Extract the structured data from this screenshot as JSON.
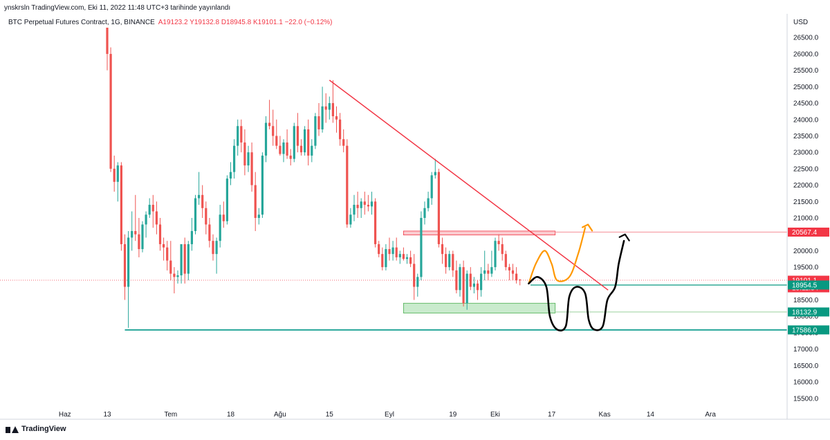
{
  "header": {
    "credit": "ynskrsln TradingView.com, Eki 11, 2022 11:48 UTC+3 tarihinde yayınlandı",
    "symbol": "BTC Perpetual Futures Contract, 1G, BINANCE",
    "ohlc_open": "A19123.2",
    "ohlc_high": "Y19132.8",
    "ohlc_low": "D18945.8",
    "ohlc_close": "K19101.1",
    "change": "−22.0 (−0.12%)",
    "currency": "USD"
  },
  "footer": {
    "brand": "TradingView",
    "brand_icon": "tradingview-logo-icon"
  },
  "chart_data": {
    "type": "candlestick",
    "title": "",
    "xlabel": "",
    "ylabel": "",
    "ylim": [
      15200,
      26800
    ],
    "colors": {
      "up": "#26a69a",
      "down": "#ef5350",
      "trendline": "#f23645",
      "support": "#089981",
      "resistance_zone": "#f7a1a8",
      "support_zone": "#b7e4bc",
      "annotation_orange": "#ff9800",
      "annotation_black": "#000000"
    },
    "y_ticks": [
      15500,
      16000,
      16500,
      17000,
      17500,
      18000,
      18500,
      19000,
      19500,
      20000,
      20500,
      21000,
      21500,
      22000,
      22500,
      23000,
      23500,
      24000,
      24500,
      25000,
      25500,
      26000,
      26500
    ],
    "x_ticks": [
      {
        "label": "Haz",
        "day": -12
      },
      {
        "label": "13",
        "day": 0
      },
      {
        "label": "Tem",
        "day": 18
      },
      {
        "label": "18",
        "day": 35
      },
      {
        "label": "Ağu",
        "day": 49
      },
      {
        "label": "15",
        "day": 63
      },
      {
        "label": "Eyl",
        "day": 80
      },
      {
        "label": "19",
        "day": 98
      },
      {
        "label": "Eki",
        "day": 110
      },
      {
        "label": "17",
        "day": 126
      },
      {
        "label": "Kas",
        "day": 141
      },
      {
        "label": "14",
        "day": 154
      },
      {
        "label": "Ara",
        "day": 171
      }
    ],
    "price_labels": [
      {
        "value": 20567.4,
        "text": "20567.4",
        "color": "#f23645"
      },
      {
        "value": 19101.1,
        "text": "19101.1",
        "sub": "15:11:34",
        "color": "#f23645"
      },
      {
        "value": 18954.5,
        "text": "18954.5",
        "color": "#089981"
      },
      {
        "value": 18132.9,
        "text": "18132.9",
        "color": "#089981"
      },
      {
        "value": 17586.0,
        "text": "17586.0",
        "color": "#089981"
      }
    ],
    "candles": [
      {
        "d": 0,
        "o": 27000,
        "h": 27200,
        "l": 25500,
        "c": 26000
      },
      {
        "d": 1,
        "o": 26000,
        "h": 26200,
        "l": 22400,
        "c": 22500
      },
      {
        "d": 2,
        "o": 22500,
        "h": 22900,
        "l": 21800,
        "c": 22100
      },
      {
        "d": 3,
        "o": 22100,
        "h": 22700,
        "l": 21500,
        "c": 22600
      },
      {
        "d": 4,
        "o": 22600,
        "h": 22700,
        "l": 20000,
        "c": 20200
      },
      {
        "d": 5,
        "o": 20200,
        "h": 20500,
        "l": 18500,
        "c": 18900
      },
      {
        "d": 6,
        "o": 18900,
        "h": 20600,
        "l": 17650,
        "c": 20400
      },
      {
        "d": 7,
        "o": 20400,
        "h": 21200,
        "l": 20000,
        "c": 20600
      },
      {
        "d": 8,
        "o": 20600,
        "h": 21700,
        "l": 20300,
        "c": 20500
      },
      {
        "d": 9,
        "o": 20500,
        "h": 21000,
        "l": 19800,
        "c": 20050
      },
      {
        "d": 10,
        "o": 20050,
        "h": 20900,
        "l": 19950,
        "c": 20800
      },
      {
        "d": 11,
        "o": 20800,
        "h": 21200,
        "l": 20400,
        "c": 21100
      },
      {
        "d": 12,
        "o": 21100,
        "h": 21600,
        "l": 21000,
        "c": 21400
      },
      {
        "d": 13,
        "o": 21400,
        "h": 21700,
        "l": 20700,
        "c": 21200
      },
      {
        "d": 14,
        "o": 21200,
        "h": 21500,
        "l": 20500,
        "c": 20800
      },
      {
        "d": 15,
        "o": 20800,
        "h": 21000,
        "l": 20000,
        "c": 20200
      },
      {
        "d": 16,
        "o": 20200,
        "h": 20400,
        "l": 19700,
        "c": 20100
      },
      {
        "d": 17,
        "o": 20100,
        "h": 20300,
        "l": 19400,
        "c": 19700
      },
      {
        "d": 18,
        "o": 19700,
        "h": 20300,
        "l": 19100,
        "c": 19300
      },
      {
        "d": 19,
        "o": 19300,
        "h": 19500,
        "l": 18700,
        "c": 19200
      },
      {
        "d": 20,
        "o": 19200,
        "h": 19400,
        "l": 19000,
        "c": 19250
      },
      {
        "d": 21,
        "o": 19250,
        "h": 20200,
        "l": 19000,
        "c": 20200
      },
      {
        "d": 22,
        "o": 20200,
        "h": 20400,
        "l": 19000,
        "c": 19300
      },
      {
        "d": 23,
        "o": 19300,
        "h": 20300,
        "l": 19100,
        "c": 20200
      },
      {
        "d": 24,
        "o": 20200,
        "h": 21000,
        "l": 20000,
        "c": 20600
      },
      {
        "d": 25,
        "o": 20600,
        "h": 21700,
        "l": 20500,
        "c": 21600
      },
      {
        "d": 26,
        "o": 21600,
        "h": 22400,
        "l": 21400,
        "c": 21700
      },
      {
        "d": 27,
        "o": 21700,
        "h": 22000,
        "l": 21000,
        "c": 21300
      },
      {
        "d": 28,
        "o": 21300,
        "h": 21500,
        "l": 20500,
        "c": 20800
      },
      {
        "d": 29,
        "o": 20800,
        "h": 21000,
        "l": 20100,
        "c": 20300
      },
      {
        "d": 30,
        "o": 20300,
        "h": 20500,
        "l": 19700,
        "c": 19900
      },
      {
        "d": 31,
        "o": 19900,
        "h": 20400,
        "l": 19300,
        "c": 20300
      },
      {
        "d": 32,
        "o": 20300,
        "h": 21400,
        "l": 20100,
        "c": 21100
      },
      {
        "d": 33,
        "o": 21100,
        "h": 21500,
        "l": 20700,
        "c": 20900
      },
      {
        "d": 34,
        "o": 20900,
        "h": 22300,
        "l": 20800,
        "c": 22200
      },
      {
        "d": 35,
        "o": 22200,
        "h": 22700,
        "l": 22000,
        "c": 22400
      },
      {
        "d": 36,
        "o": 22400,
        "h": 23400,
        "l": 22200,
        "c": 23200
      },
      {
        "d": 37,
        "o": 23200,
        "h": 24000,
        "l": 22900,
        "c": 23800
      },
      {
        "d": 38,
        "o": 23800,
        "h": 24000,
        "l": 23000,
        "c": 23300
      },
      {
        "d": 39,
        "o": 23300,
        "h": 23700,
        "l": 22300,
        "c": 22600
      },
      {
        "d": 40,
        "o": 22600,
        "h": 23200,
        "l": 22400,
        "c": 23000
      },
      {
        "d": 41,
        "o": 23000,
        "h": 23300,
        "l": 21800,
        "c": 22000
      },
      {
        "d": 42,
        "o": 22000,
        "h": 22400,
        "l": 20600,
        "c": 21000
      },
      {
        "d": 43,
        "o": 21000,
        "h": 21300,
        "l": 20800,
        "c": 21100
      },
      {
        "d": 44,
        "o": 21100,
        "h": 23000,
        "l": 21000,
        "c": 22900
      },
      {
        "d": 45,
        "o": 22900,
        "h": 24100,
        "l": 22700,
        "c": 23900
      },
      {
        "d": 46,
        "o": 23900,
        "h": 24600,
        "l": 23700,
        "c": 23800
      },
      {
        "d": 47,
        "o": 23800,
        "h": 24300,
        "l": 23200,
        "c": 23500
      },
      {
        "d": 48,
        "o": 23500,
        "h": 24000,
        "l": 23100,
        "c": 23200
      },
      {
        "d": 49,
        "o": 23200,
        "h": 23500,
        "l": 22900,
        "c": 22950
      },
      {
        "d": 50,
        "o": 22950,
        "h": 23400,
        "l": 22700,
        "c": 23300
      },
      {
        "d": 51,
        "o": 23300,
        "h": 23700,
        "l": 22800,
        "c": 22900
      },
      {
        "d": 52,
        "o": 22900,
        "h": 23100,
        "l": 22600,
        "c": 22800
      },
      {
        "d": 53,
        "o": 22800,
        "h": 23900,
        "l": 22700,
        "c": 23800
      },
      {
        "d": 54,
        "o": 23800,
        "h": 24200,
        "l": 23000,
        "c": 23200
      },
      {
        "d": 55,
        "o": 23200,
        "h": 23400,
        "l": 22900,
        "c": 23000
      },
      {
        "d": 56,
        "o": 23000,
        "h": 23800,
        "l": 22900,
        "c": 23700
      },
      {
        "d": 57,
        "o": 23700,
        "h": 24000,
        "l": 22600,
        "c": 22900
      },
      {
        "d": 58,
        "o": 22900,
        "h": 23400,
        "l": 22700,
        "c": 23200
      },
      {
        "d": 59,
        "o": 23200,
        "h": 24200,
        "l": 23100,
        "c": 24100
      },
      {
        "d": 60,
        "o": 24100,
        "h": 24500,
        "l": 23500,
        "c": 23700
      },
      {
        "d": 61,
        "o": 23700,
        "h": 25000,
        "l": 23600,
        "c": 24400
      },
      {
        "d": 62,
        "o": 24400,
        "h": 24800,
        "l": 23900,
        "c": 24300
      },
      {
        "d": 63,
        "o": 24300,
        "h": 24700,
        "l": 24000,
        "c": 24500
      },
      {
        "d": 64,
        "o": 24500,
        "h": 25200,
        "l": 23900,
        "c": 24100
      },
      {
        "d": 65,
        "o": 24100,
        "h": 24400,
        "l": 23600,
        "c": 24000
      },
      {
        "d": 66,
        "o": 24000,
        "h": 24200,
        "l": 23200,
        "c": 23400
      },
      {
        "d": 67,
        "o": 23400,
        "h": 23700,
        "l": 23000,
        "c": 23200
      },
      {
        "d": 68,
        "o": 23200,
        "h": 23400,
        "l": 20700,
        "c": 20800
      },
      {
        "d": 69,
        "o": 20800,
        "h": 21300,
        "l": 20700,
        "c": 21100
      },
      {
        "d": 70,
        "o": 21100,
        "h": 21700,
        "l": 20900,
        "c": 21400
      },
      {
        "d": 71,
        "o": 21400,
        "h": 21800,
        "l": 21000,
        "c": 21300
      },
      {
        "d": 72,
        "o": 21300,
        "h": 21600,
        "l": 21000,
        "c": 21500
      },
      {
        "d": 73,
        "o": 21500,
        "h": 21800,
        "l": 21100,
        "c": 21400
      },
      {
        "d": 74,
        "o": 21400,
        "h": 21700,
        "l": 21200,
        "c": 21350
      },
      {
        "d": 75,
        "o": 21350,
        "h": 21800,
        "l": 21100,
        "c": 21500
      },
      {
        "d": 76,
        "o": 21500,
        "h": 21600,
        "l": 20100,
        "c": 20200
      },
      {
        "d": 77,
        "o": 20200,
        "h": 20300,
        "l": 19800,
        "c": 19900
      },
      {
        "d": 78,
        "o": 19900,
        "h": 20100,
        "l": 19400,
        "c": 19500
      },
      {
        "d": 79,
        "o": 19500,
        "h": 20200,
        "l": 19400,
        "c": 20050
      },
      {
        "d": 80,
        "o": 20050,
        "h": 20400,
        "l": 19700,
        "c": 19900
      },
      {
        "d": 81,
        "o": 19900,
        "h": 20300,
        "l": 19700,
        "c": 20100
      },
      {
        "d": 82,
        "o": 20100,
        "h": 20400,
        "l": 19700,
        "c": 19800
      },
      {
        "d": 83,
        "o": 19800,
        "h": 20000,
        "l": 19600,
        "c": 19900
      },
      {
        "d": 84,
        "o": 19900,
        "h": 20100,
        "l": 19700,
        "c": 19750
      },
      {
        "d": 85,
        "o": 19750,
        "h": 19900,
        "l": 19600,
        "c": 19800
      },
      {
        "d": 86,
        "o": 19800,
        "h": 20000,
        "l": 19500,
        "c": 19600
      },
      {
        "d": 87,
        "o": 19600,
        "h": 19900,
        "l": 18500,
        "c": 18900
      },
      {
        "d": 88,
        "o": 18900,
        "h": 19300,
        "l": 18600,
        "c": 19200
      },
      {
        "d": 89,
        "o": 19200,
        "h": 21200,
        "l": 19100,
        "c": 21000
      },
      {
        "d": 90,
        "o": 21000,
        "h": 21500,
        "l": 20800,
        "c": 21300
      },
      {
        "d": 91,
        "o": 21300,
        "h": 21800,
        "l": 21200,
        "c": 21600
      },
      {
        "d": 92,
        "o": 21600,
        "h": 22400,
        "l": 21400,
        "c": 22300
      },
      {
        "d": 93,
        "o": 22300,
        "h": 22800,
        "l": 22200,
        "c": 22400
      },
      {
        "d": 94,
        "o": 22400,
        "h": 22500,
        "l": 20100,
        "c": 20200
      },
      {
        "d": 95,
        "o": 20200,
        "h": 20400,
        "l": 19600,
        "c": 19900
      },
      {
        "d": 96,
        "o": 19900,
        "h": 20100,
        "l": 19300,
        "c": 19500
      },
      {
        "d": 97,
        "o": 19500,
        "h": 20000,
        "l": 19400,
        "c": 19900
      },
      {
        "d": 98,
        "o": 19900,
        "h": 20000,
        "l": 19200,
        "c": 19400
      },
      {
        "d": 99,
        "o": 19400,
        "h": 19700,
        "l": 18700,
        "c": 18800
      },
      {
        "d": 100,
        "o": 18800,
        "h": 19600,
        "l": 18600,
        "c": 19500
      },
      {
        "d": 101,
        "o": 19500,
        "h": 19700,
        "l": 18300,
        "c": 18400
      },
      {
        "d": 102,
        "o": 18400,
        "h": 19400,
        "l": 18200,
        "c": 19300
      },
      {
        "d": 103,
        "o": 19300,
        "h": 19500,
        "l": 18800,
        "c": 18900
      },
      {
        "d": 104,
        "o": 18900,
        "h": 19200,
        "l": 18700,
        "c": 19000
      },
      {
        "d": 105,
        "o": 19000,
        "h": 19100,
        "l": 18500,
        "c": 18800
      },
      {
        "d": 106,
        "o": 18800,
        "h": 19500,
        "l": 18600,
        "c": 19300
      },
      {
        "d": 107,
        "o": 19300,
        "h": 20000,
        "l": 19100,
        "c": 19400
      },
      {
        "d": 108,
        "o": 19400,
        "h": 19600,
        "l": 19100,
        "c": 19300
      },
      {
        "d": 109,
        "o": 19300,
        "h": 20000,
        "l": 19200,
        "c": 19500
      },
      {
        "d": 110,
        "o": 19500,
        "h": 20400,
        "l": 19400,
        "c": 20300
      },
      {
        "d": 111,
        "o": 20300,
        "h": 20500,
        "l": 20000,
        "c": 20200
      },
      {
        "d": 112,
        "o": 20200,
        "h": 20400,
        "l": 19700,
        "c": 19900
      },
      {
        "d": 113,
        "o": 19900,
        "h": 20000,
        "l": 19400,
        "c": 19500
      },
      {
        "d": 114,
        "o": 19500,
        "h": 19600,
        "l": 19100,
        "c": 19400
      },
      {
        "d": 115,
        "o": 19400,
        "h": 19600,
        "l": 19100,
        "c": 19300
      },
      {
        "d": 116,
        "o": 19300,
        "h": 19500,
        "l": 19000,
        "c": 19100
      },
      {
        "d": 117,
        "o": 19123.2,
        "h": 19132.8,
        "l": 18945.8,
        "c": 19101.1
      }
    ],
    "drawings": {
      "trendline": {
        "from": {
          "d": 63,
          "v": 25200
        },
        "to": {
          "d": 142,
          "v": 18800
        }
      },
      "resistance_zone": {
        "d1": 84,
        "d2": 127,
        "v1": 20480,
        "v2": 20600
      },
      "support_zone": {
        "d1": 84,
        "d2": 127,
        "v1": 18100,
        "v2": 18400
      },
      "horizontal_lines": [
        {
          "value": 18954.5,
          "d1": 120,
          "color": "#089981"
        },
        {
          "value": 18132.9,
          "d1": 127,
          "color": "#a5d6a7"
        },
        {
          "value": 20567.4,
          "d1": 127,
          "color": "#f7a1a8"
        },
        {
          "value": 17586.0,
          "d1": 5,
          "color": "#26a69a"
        }
      ],
      "orange_path": [
        {
          "d": 119.5,
          "v": 19000
        },
        {
          "d": 121.5,
          "v": 19600
        },
        {
          "d": 124,
          "v": 20000
        },
        {
          "d": 126,
          "v": 19600
        },
        {
          "d": 127.5,
          "v": 19100
        },
        {
          "d": 131,
          "v": 19200
        },
        {
          "d": 133.5,
          "v": 19900
        },
        {
          "d": 135.5,
          "v": 20700
        }
      ],
      "orange_arrow_tip": {
        "d": 136.3,
        "v": 20800
      },
      "black_path": [
        {
          "d": 119.5,
          "v": 19000
        },
        {
          "d": 122,
          "v": 19200
        },
        {
          "d": 124.5,
          "v": 18900
        },
        {
          "d": 125.5,
          "v": 18000
        },
        {
          "d": 127.5,
          "v": 17600
        },
        {
          "d": 130,
          "v": 17700
        },
        {
          "d": 131,
          "v": 18600
        },
        {
          "d": 133,
          "v": 18900
        },
        {
          "d": 135.5,
          "v": 18700
        },
        {
          "d": 136.5,
          "v": 17900
        },
        {
          "d": 138,
          "v": 17600
        },
        {
          "d": 140.5,
          "v": 17700
        },
        {
          "d": 141.8,
          "v": 18500
        },
        {
          "d": 144,
          "v": 18900
        },
        {
          "d": 145,
          "v": 19600
        },
        {
          "d": 146.5,
          "v": 20300
        }
      ],
      "black_arrow_tip": {
        "d": 146.8,
        "v": 20500
      }
    }
  }
}
